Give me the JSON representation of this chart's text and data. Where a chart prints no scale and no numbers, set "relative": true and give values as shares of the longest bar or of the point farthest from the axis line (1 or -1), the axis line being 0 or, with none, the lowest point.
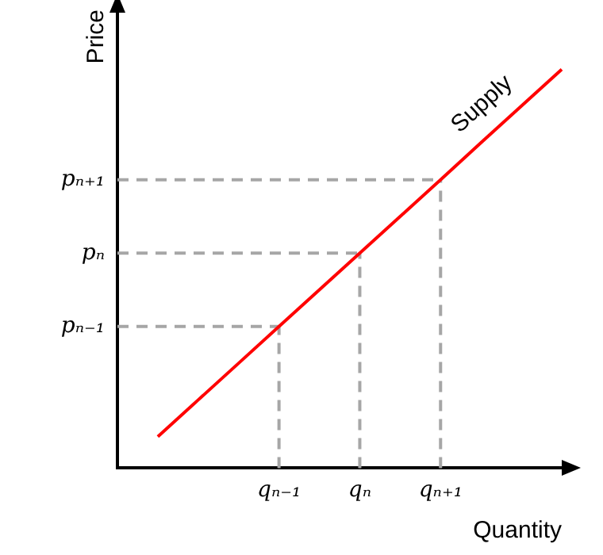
{
  "chart_data": {
    "type": "line",
    "relative": true,
    "xlabel": "Quantity",
    "ylabel": "Price",
    "marker": "none",
    "categories": [
      null,
      null,
      null,
      null,
      "qₙ₋₁",
      null,
      "qₙ",
      null,
      "qₙ₊₁",
      null,
      null,
      null
    ],
    "ref_lines": [
      {
        "axis": "y",
        "value": 0.355,
        "label": "pₙ₋₁",
        "color": "#a6a6a6",
        "line_style": "dashed"
      },
      {
        "axis": "y",
        "value": 0.539,
        "label": "pₙ",
        "color": "#a6a6a6",
        "line_style": "dashed"
      },
      {
        "axis": "y",
        "value": 0.723,
        "label": "pₙ₊₁",
        "color": "#a6a6a6",
        "line_style": "dashed"
      },
      {
        "axis": "x",
        "value": "qₙ₋₁",
        "color": "#a6a6a6",
        "line_style": "dashed"
      },
      {
        "axis": "x",
        "value": "qₙ",
        "color": "#a6a6a6",
        "line_style": "dashed"
      },
      {
        "axis": "x",
        "value": "qₙ₊₁",
        "color": "#a6a6a6",
        "line_style": "dashed"
      }
    ],
    "series": [
      {
        "name": "Supply",
        "color": "#ff0000",
        "line_style": "solid",
        "values": [
          null,
          0.079,
          0.171,
          0.263,
          0.355,
          0.447,
          0.539,
          0.631,
          0.723,
          0.816,
          0.908,
          1
        ]
      }
    ]
  }
}
